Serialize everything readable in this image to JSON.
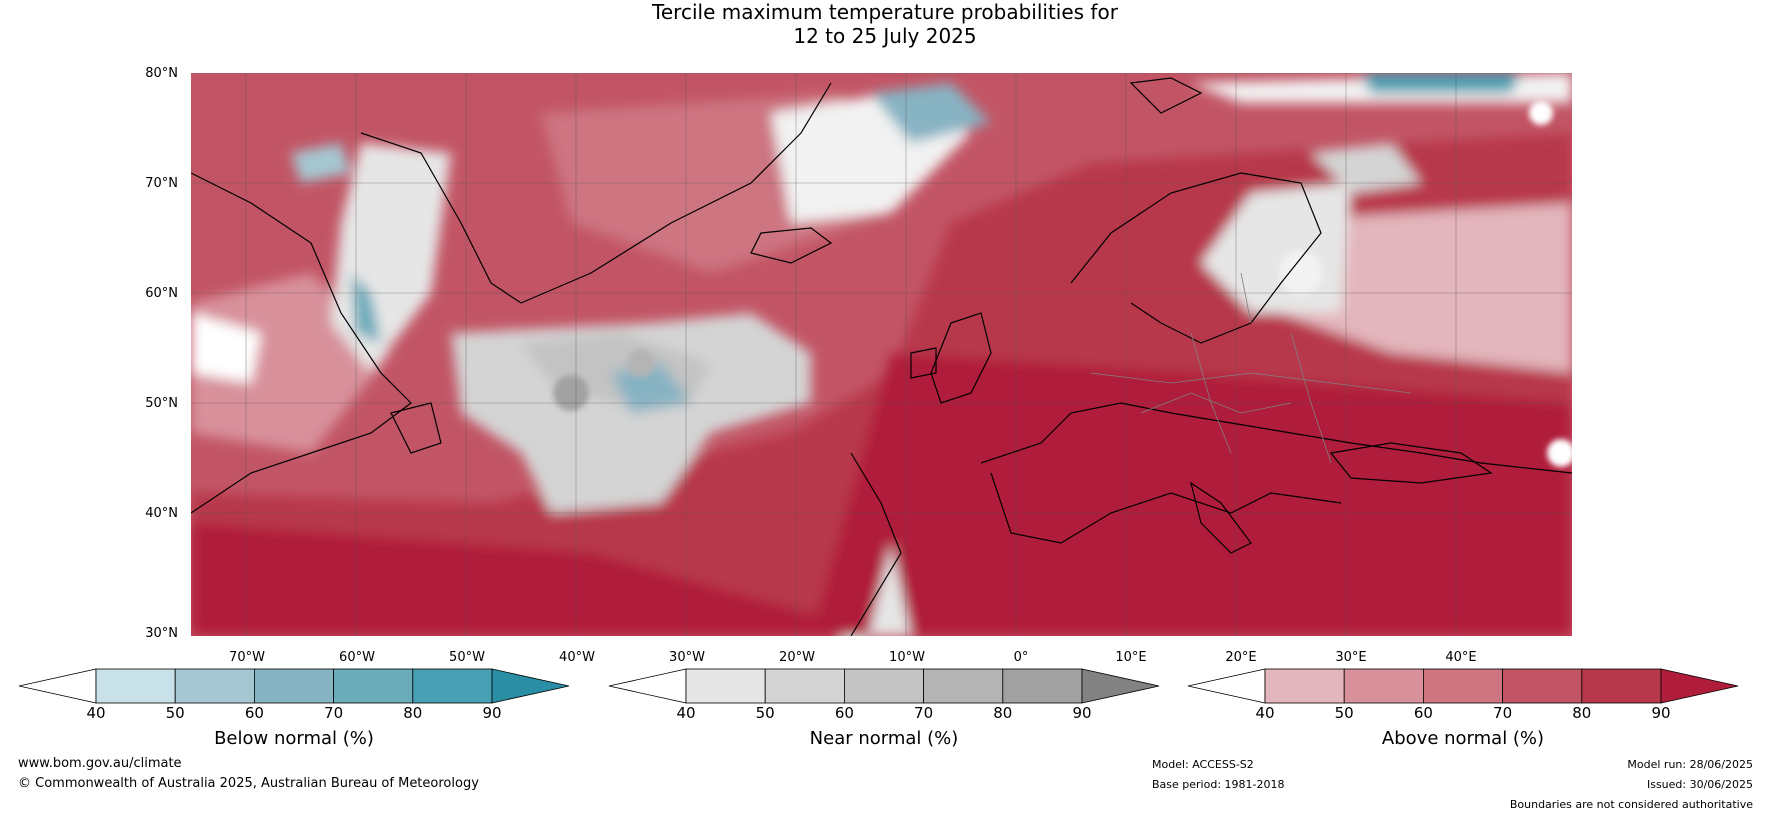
{
  "title": {
    "line1": "Tercile maximum temperature probabilities for",
    "line2": "12 to 25 July 2025"
  },
  "map": {
    "lat_labels": [
      "80°N",
      "70°N",
      "60°N",
      "50°N",
      "40°N",
      "30°N"
    ],
    "lon_labels": [
      "70°W",
      "60°W",
      "50°W",
      "40°W",
      "30°W",
      "20°W",
      "10°W",
      "0°",
      "10°E",
      "20°E",
      "30°E",
      "40°E"
    ]
  },
  "colorbars": [
    {
      "title": "Below normal (%)",
      "ticks": [
        "40",
        "50",
        "60",
        "70",
        "80",
        "90"
      ],
      "colors": [
        "#c9e2ea",
        "#a5c7d1",
        "#87b3c3",
        "#6bacbb",
        "#48a0b4"
      ],
      "under": "#ffffff",
      "over": "#2a8fa5"
    },
    {
      "title": "Near normal (%)",
      "ticks": [
        "40",
        "50",
        "60",
        "70",
        "80",
        "90"
      ],
      "colors": [
        "#e6e6e6",
        "#d4d4d4",
        "#c3c3c3",
        "#b4b4b4",
        "#a1a1a1"
      ],
      "under": "#ffffff",
      "over": "#828282"
    },
    {
      "title": "Above normal (%)",
      "ticks": [
        "40",
        "50",
        "60",
        "70",
        "80",
        "90"
      ],
      "colors": [
        "#e3b5bc",
        "#d8919b",
        "#cd7581",
        "#c25565",
        "#b8384b"
      ],
      "under": "#ffffff",
      "over": "#b01d3a"
    }
  ],
  "footer": {
    "website": "www.bom.gov.au/climate",
    "copyright": "© Commonwealth of Australia 2025, Australian Bureau of Meteorology",
    "model": "Model: ACCESS-S2",
    "base_period": "Base period: 1981-2018",
    "model_run": "Model run: 28/06/2025",
    "issued": "Issued: 30/06/2025",
    "disclaimer": "Boundaries are not considered authoritative"
  }
}
